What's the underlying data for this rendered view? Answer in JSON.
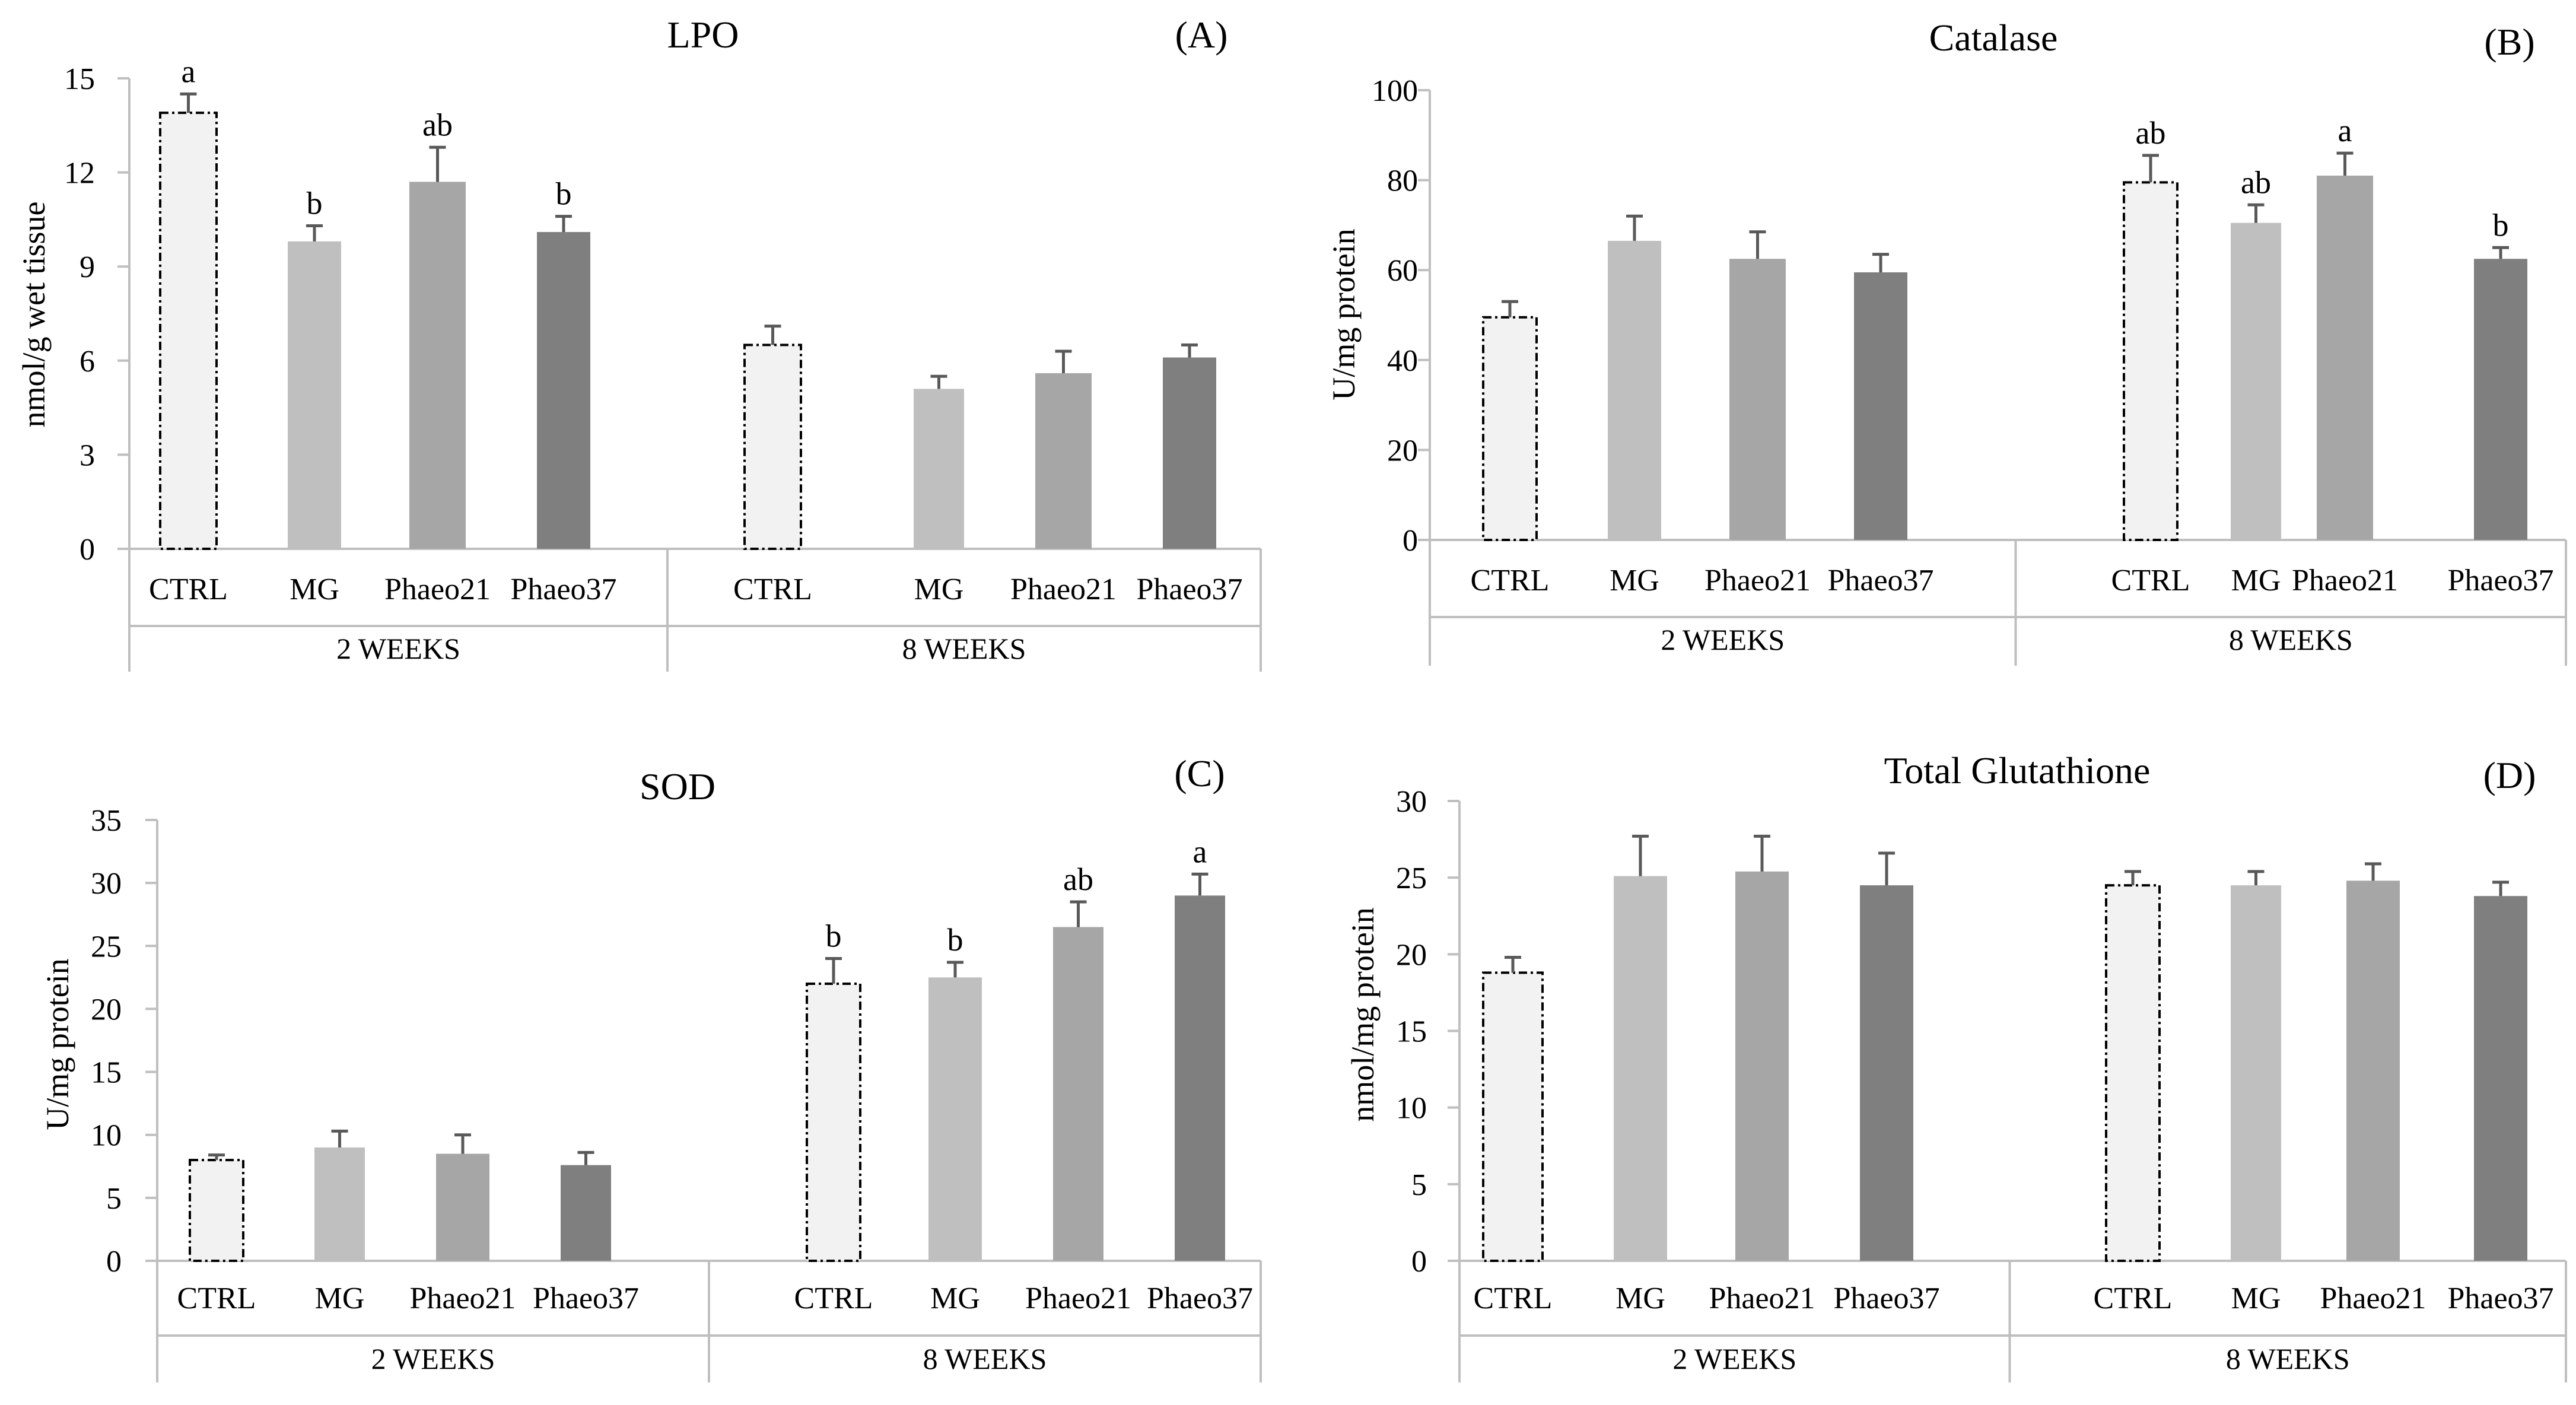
{
  "chart_data": [
    {
      "type": "bar",
      "panel": "(A)",
      "title": "LPO",
      "ylabel": "nmol/g wet tissue",
      "ylim": [
        0,
        15
      ],
      "yticks": [
        "0",
        "3",
        "6",
        "9",
        "12",
        "15"
      ],
      "categories": [
        "CTRL",
        "MG",
        "Phaeo21",
        "Phaeo37"
      ],
      "group_labels": [
        "2 WEEKS",
        "8 WEEKS"
      ],
      "colors": [
        "#f2f2f2",
        "#bfbfbf",
        "#a6a6a6",
        "#7f7f7f"
      ],
      "groups": [
        {
          "name": "2 WEEKS",
          "values": [
            13.9,
            9.8,
            11.7,
            10.1
          ],
          "errors": [
            0.6,
            0.5,
            1.1,
            0.5
          ],
          "sig": [
            "a",
            "b",
            "ab",
            "b"
          ]
        },
        {
          "name": "8 WEEKS",
          "values": [
            6.5,
            5.1,
            5.6,
            6.1
          ],
          "errors": [
            0.6,
            0.4,
            0.7,
            0.4
          ],
          "sig": [
            "",
            "",
            "",
            ""
          ]
        }
      ]
    },
    {
      "type": "bar",
      "panel": "(B)",
      "title": "Catalase",
      "ylabel": "U/mg protein",
      "ylim": [
        0,
        100
      ],
      "yticks": [
        "0",
        "20",
        "40",
        "60",
        "80",
        "100"
      ],
      "categories": [
        "CTRL",
        "MG",
        "Phaeo21",
        "Phaeo37"
      ],
      "group_labels": [
        "2 WEEKS",
        "8 WEEKS"
      ],
      "colors": [
        "#f2f2f2",
        "#bfbfbf",
        "#a6a6a6",
        "#7f7f7f"
      ],
      "groups": [
        {
          "name": "2 WEEKS",
          "values": [
            49.5,
            66.5,
            62.5,
            59.5
          ],
          "errors": [
            3.5,
            5.5,
            6.0,
            4.0
          ],
          "sig": [
            "",
            "",
            "",
            ""
          ]
        },
        {
          "name": "8 WEEKS",
          "values": [
            79.5,
            70.5,
            81.0,
            62.5
          ],
          "errors": [
            6.0,
            4.0,
            5.0,
            2.5
          ],
          "sig": [
            "ab",
            "ab",
            "a",
            "b"
          ]
        }
      ]
    },
    {
      "type": "bar",
      "panel": "(C)",
      "title": "SOD",
      "ylabel": "U/mg protein",
      "ylim": [
        0,
        35
      ],
      "yticks": [
        "0",
        "5",
        "10",
        "15",
        "20",
        "25",
        "30",
        "35"
      ],
      "categories": [
        "CTRL",
        "MG",
        "Phaeo21",
        "Phaeo37"
      ],
      "group_labels": [
        "2 WEEKS",
        "8 WEEKS"
      ],
      "colors": [
        "#f2f2f2",
        "#bfbfbf",
        "#a6a6a6",
        "#7f7f7f"
      ],
      "groups": [
        {
          "name": "2 WEEKS",
          "values": [
            8.0,
            9.0,
            8.5,
            7.6
          ],
          "errors": [
            0.4,
            1.3,
            1.5,
            1.0
          ],
          "sig": [
            "",
            "",
            "",
            ""
          ]
        },
        {
          "name": "8 WEEKS",
          "values": [
            22.0,
            22.5,
            26.5,
            29.0
          ],
          "errors": [
            2.0,
            1.2,
            2.0,
            1.7
          ],
          "sig": [
            "b",
            "b",
            "ab",
            "a"
          ]
        }
      ]
    },
    {
      "type": "bar",
      "panel": "(D)",
      "title": "Total Glutathione",
      "ylabel": "nmol/mg protein",
      "ylim": [
        0,
        30
      ],
      "yticks": [
        "0",
        "5",
        "10",
        "15",
        "20",
        "25",
        "30"
      ],
      "categories": [
        "CTRL",
        "MG",
        "Phaeo21",
        "Phaeo37"
      ],
      "group_labels": [
        "2 WEEKS",
        "8 WEEKS"
      ],
      "colors": [
        "#f2f2f2",
        "#bfbfbf",
        "#a6a6a6",
        "#7f7f7f"
      ],
      "groups": [
        {
          "name": "2 WEEKS",
          "values": [
            18.8,
            25.1,
            25.4,
            24.5
          ],
          "errors": [
            1.0,
            2.6,
            2.3,
            2.1
          ],
          "sig": [
            "",
            "",
            "",
            ""
          ]
        },
        {
          "name": "8 WEEKS",
          "values": [
            24.5,
            24.5,
            24.8,
            23.8
          ],
          "errors": [
            0.9,
            0.9,
            1.1,
            0.9
          ],
          "sig": [
            "",
            "",
            "",
            ""
          ]
        }
      ]
    }
  ]
}
